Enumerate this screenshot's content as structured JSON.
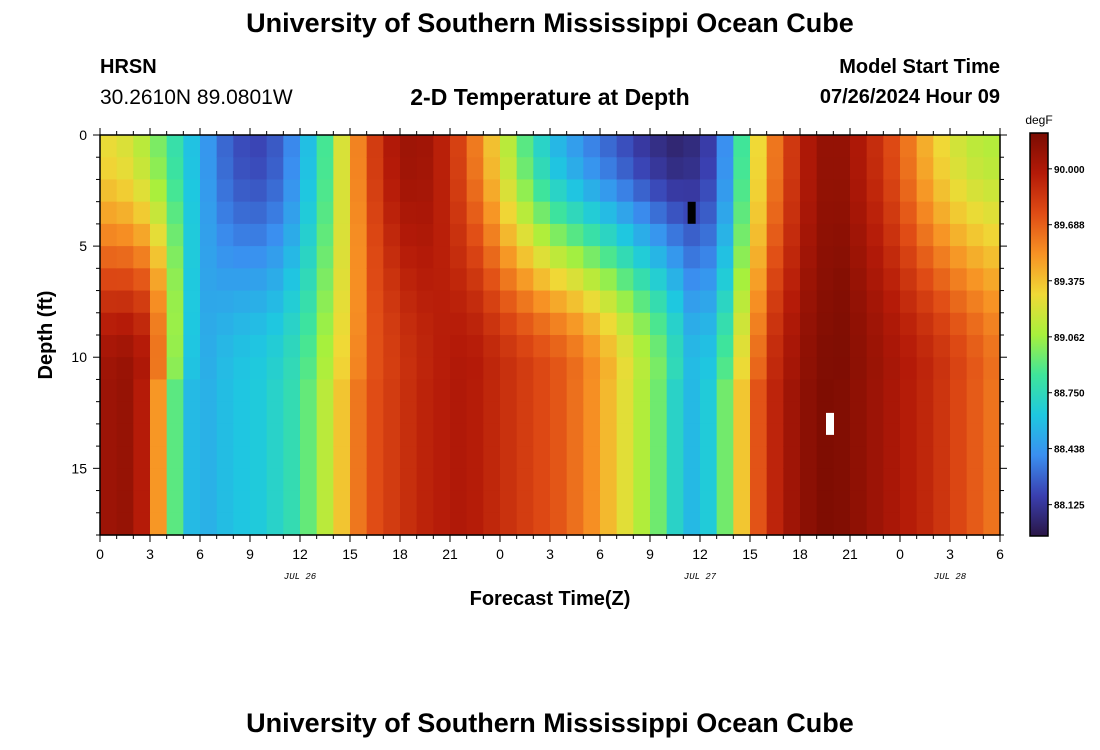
{
  "header": {
    "title": "University of Southern Mississippi Ocean Cube",
    "station": "HRSN",
    "coords": "30.2610N  89.0801W",
    "subtitle": "2-D Temperature at Depth",
    "model_start_label": "Model Start Time",
    "model_start_value": "07/26/2024 Hour 09"
  },
  "footer": {
    "title": "University of Southern Mississippi Ocean Cube"
  },
  "colors": {
    "colormap": [
      "#2a1646",
      "#3a3fb0",
      "#3a8ff0",
      "#1ec8e0",
      "#3fe59a",
      "#a8f03c",
      "#f0d936",
      "#f79224",
      "#e04c15",
      "#b41a08",
      "#7a0c02"
    ]
  },
  "chart_data": {
    "type": "heatmap",
    "title": "2-D Temperature at Depth",
    "xlabel": "Forecast Time(Z)",
    "ylabel": "Depth (ft)",
    "xlim_hours": [
      0,
      54
    ],
    "ylim": [
      0,
      18
    ],
    "x_tick_labels": [
      "0",
      "3",
      "6",
      "9",
      "12",
      "15",
      "18",
      "21",
      "0",
      "3",
      "6",
      "9",
      "12",
      "15",
      "18",
      "21",
      "0",
      "3",
      "6"
    ],
    "y_ticks": [
      0,
      5,
      10,
      15
    ],
    "date_labels": [
      {
        "text": "JUL 26",
        "hour": 12
      },
      {
        "text": "JUL 27",
        "hour": 36
      },
      {
        "text": "JUL 28",
        "hour": 51
      }
    ],
    "colorbar": {
      "unit": "degF",
      "range": [
        87.95,
        90.2
      ],
      "ticks": [
        88.125,
        88.438,
        88.75,
        89.062,
        89.375,
        89.688,
        90.0
      ],
      "tick_labels": [
        "88.125",
        "88.438",
        "88.750",
        "89.062",
        "89.375",
        "89.688",
        "90.000"
      ]
    },
    "grid": {
      "n_time": 54,
      "n_depth": 18,
      "hour_step": 1,
      "depth_step_ft": 1
    },
    "surface_profile": [
      [
        0,
        89.3
      ],
      [
        2,
        89.2
      ],
      [
        4,
        88.9
      ],
      [
        6,
        88.5
      ],
      [
        8,
        88.22
      ],
      [
        10,
        88.18
      ],
      [
        12,
        88.45
      ],
      [
        14,
        89.0
      ],
      [
        15,
        89.45
      ],
      [
        17,
        89.95
      ],
      [
        19,
        90.1
      ],
      [
        21,
        89.9
      ],
      [
        23,
        89.5
      ],
      [
        25,
        89.0
      ],
      [
        27,
        88.6
      ],
      [
        29,
        88.4
      ],
      [
        31,
        88.25
      ],
      [
        33,
        88.1
      ],
      [
        35,
        88.02
      ],
      [
        37,
        88.2
      ],
      [
        38,
        88.6
      ],
      [
        39,
        89.1
      ],
      [
        40,
        89.5
      ],
      [
        42,
        89.95
      ],
      [
        44,
        90.15
      ],
      [
        46,
        89.95
      ],
      [
        48,
        89.7
      ],
      [
        50,
        89.35
      ],
      [
        52,
        89.15
      ],
      [
        54,
        89.1
      ]
    ],
    "bottom_profile": [
      [
        0,
        90.05
      ],
      [
        2,
        90.1
      ],
      [
        3,
        89.9
      ],
      [
        4,
        89.3
      ],
      [
        5,
        88.7
      ],
      [
        6,
        88.5
      ],
      [
        8,
        88.6
      ],
      [
        10,
        88.65
      ],
      [
        12,
        88.8
      ],
      [
        14,
        89.2
      ],
      [
        16,
        89.7
      ],
      [
        18,
        89.85
      ],
      [
        20,
        89.95
      ],
      [
        22,
        90.0
      ],
      [
        24,
        89.9
      ],
      [
        26,
        89.8
      ],
      [
        28,
        89.7
      ],
      [
        30,
        89.5
      ],
      [
        32,
        89.2
      ],
      [
        34,
        88.9
      ],
      [
        35,
        88.6
      ],
      [
        36,
        88.55
      ],
      [
        37,
        88.7
      ],
      [
        38,
        89.1
      ],
      [
        39,
        89.5
      ],
      [
        40,
        89.85
      ],
      [
        42,
        90.1
      ],
      [
        44,
        90.2
      ],
      [
        46,
        90.1
      ],
      [
        48,
        90.0
      ],
      [
        50,
        89.9
      ],
      [
        52,
        89.75
      ],
      [
        54,
        89.6
      ]
    ],
    "transition_depth_ft": 11,
    "markers": [
      {
        "hour": 35.5,
        "depth": 3.5,
        "color": "#000000"
      },
      {
        "hour": 43.8,
        "depth": 13,
        "color": "#ffffff"
      }
    ]
  }
}
